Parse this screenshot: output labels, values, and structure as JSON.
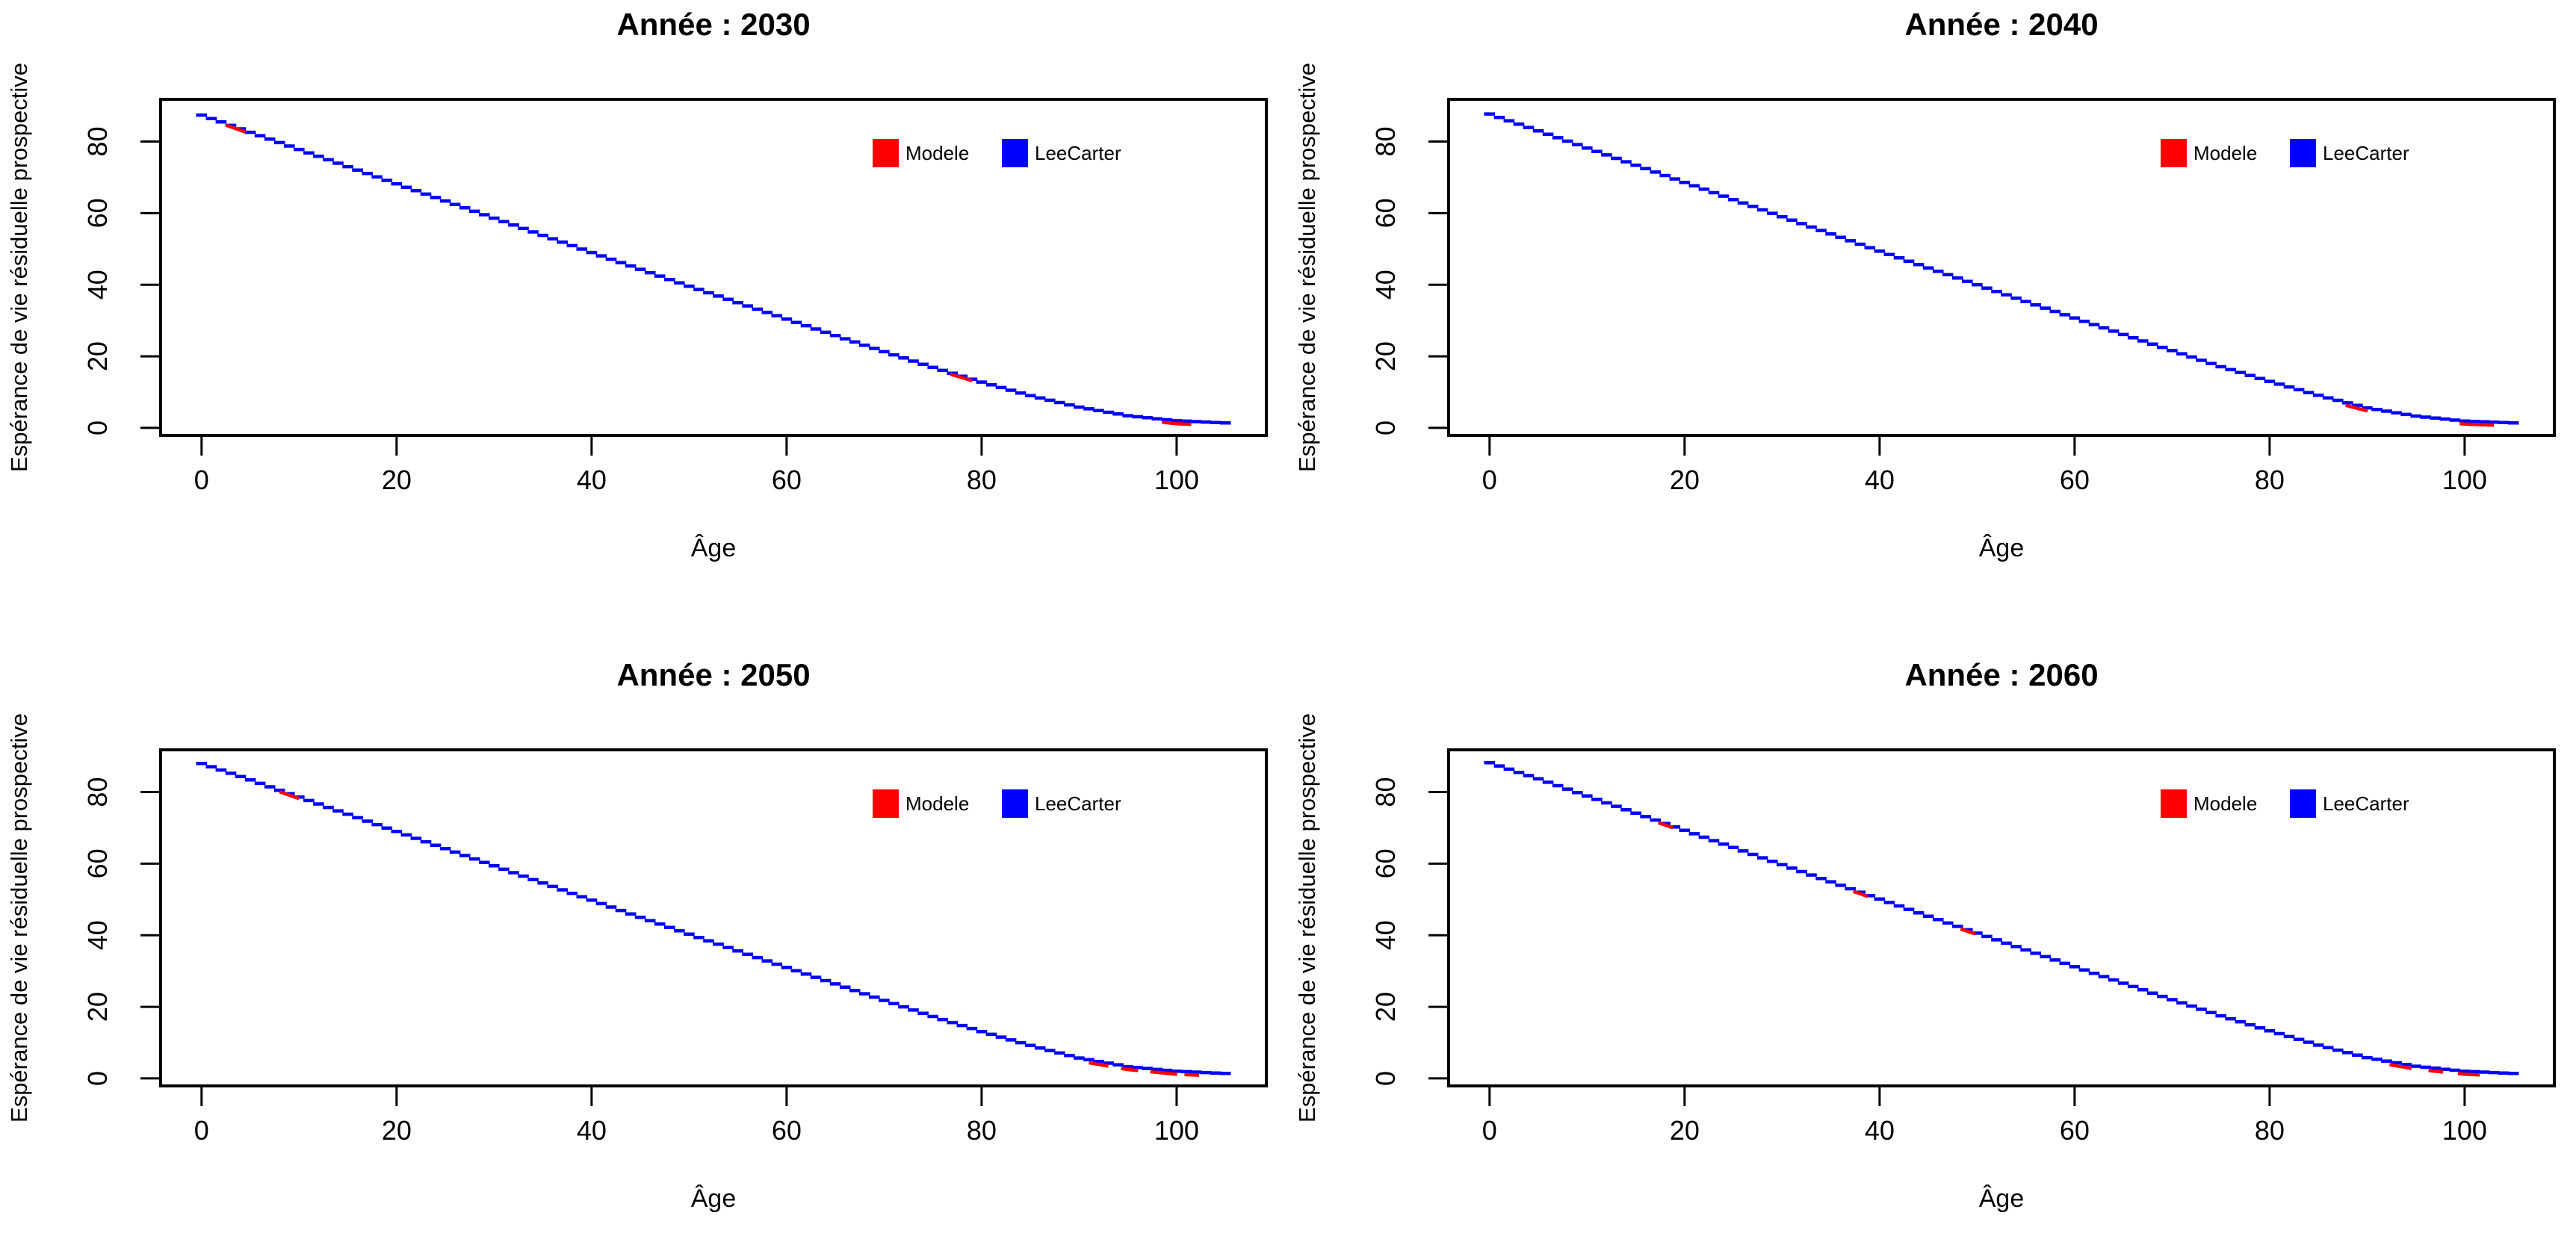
{
  "figure": {
    "background": "#ffffff",
    "rows": 2,
    "cols": 2
  },
  "chart_data": [
    {
      "type": "line",
      "title": "Année : 2030",
      "xlabel": "Âge",
      "ylabel": "Espérance de vie résiduelle prospective",
      "x_ticks": [
        0,
        20,
        40,
        60,
        80,
        100
      ],
      "y_ticks": [
        0,
        20,
        40,
        60,
        80
      ],
      "xlim": [
        -4.2,
        109.2
      ],
      "ylim": [
        -2.1,
        91.8
      ],
      "grid": false,
      "legend": {
        "position": "inside-upper-right",
        "items": [
          {
            "label": "Modele",
            "color": "#ff0000"
          },
          {
            "label": "LeeCarter",
            "color": "#0000ff"
          }
        ]
      },
      "ages": [
        0,
        5,
        10,
        15,
        20,
        25,
        30,
        35,
        40,
        45,
        50,
        55,
        60,
        65,
        70,
        75,
        80,
        85,
        90,
        95,
        100,
        105
      ],
      "series": [
        {
          "name": "Modele",
          "color": "#ff0000",
          "values": [
            87.4,
            82.6,
            77.8,
            73.0,
            68.2,
            63.4,
            58.6,
            53.8,
            49.0,
            44.3,
            39.6,
            35.0,
            30.4,
            25.8,
            21.3,
            16.9,
            12.8,
            9.0,
            5.8,
            3.4,
            2.0,
            1.4
          ]
        },
        {
          "name": "LeeCarter",
          "color": "#0000ff",
          "values": [
            87.4,
            82.6,
            77.8,
            73.0,
            68.2,
            63.4,
            58.6,
            53.8,
            49.0,
            44.3,
            39.6,
            35.0,
            30.4,
            25.8,
            21.3,
            16.9,
            12.8,
            9.0,
            5.8,
            3.4,
            2.0,
            1.4
          ]
        }
      ],
      "modele_visible_age_ranges": [
        [
          2.5,
          4.5
        ],
        [
          76.8,
          79.2
        ],
        [
          98.5,
          101.5
        ]
      ]
    },
    {
      "type": "line",
      "title": "Année : 2040",
      "xlabel": "Âge",
      "ylabel": "Espérance de vie résiduelle prospective",
      "x_ticks": [
        0,
        20,
        40,
        60,
        80,
        100
      ],
      "y_ticks": [
        0,
        20,
        40,
        60,
        80
      ],
      "xlim": [
        -4.2,
        109.2
      ],
      "ylim": [
        -2.1,
        91.8
      ],
      "grid": false,
      "legend": {
        "position": "inside-upper-right",
        "items": [
          {
            "label": "Modele",
            "color": "#ff0000"
          },
          {
            "label": "LeeCarter",
            "color": "#0000ff"
          }
        ]
      },
      "ages": [
        0,
        5,
        10,
        15,
        20,
        25,
        30,
        35,
        40,
        45,
        50,
        55,
        60,
        65,
        70,
        75,
        80,
        85,
        90,
        95,
        100,
        105
      ],
      "series": [
        {
          "name": "Modele",
          "color": "#ff0000",
          "values": [
            87.7,
            83.0,
            78.2,
            73.4,
            68.6,
            63.8,
            59.0,
            54.2,
            49.4,
            44.7,
            40.0,
            35.3,
            30.7,
            26.1,
            21.6,
            17.1,
            13.0,
            9.1,
            5.6,
            3.3,
            1.9,
            1.4
          ]
        },
        {
          "name": "LeeCarter",
          "color": "#0000ff",
          "values": [
            87.7,
            83.0,
            78.2,
            73.4,
            68.6,
            63.8,
            59.0,
            54.2,
            49.4,
            44.7,
            40.0,
            35.3,
            30.7,
            26.1,
            21.6,
            17.1,
            13.0,
            9.1,
            5.6,
            3.3,
            1.9,
            1.4
          ]
        }
      ],
      "modele_visible_age_ranges": [
        [
          87.8,
          90.2
        ],
        [
          99.5,
          103.0
        ]
      ]
    },
    {
      "type": "line",
      "title": "Année : 2050",
      "xlabel": "Âge",
      "ylabel": "Espérance de vie résiduelle prospective",
      "x_ticks": [
        0,
        20,
        40,
        60,
        80,
        100
      ],
      "y_ticks": [
        0,
        20,
        40,
        60,
        80
      ],
      "xlim": [
        -4.2,
        109.2
      ],
      "ylim": [
        -2.1,
        91.8
      ],
      "grid": false,
      "legend": {
        "position": "inside-upper-right",
        "items": [
          {
            "label": "Modele",
            "color": "#ff0000"
          },
          {
            "label": "LeeCarter",
            "color": "#0000ff"
          }
        ]
      },
      "ages": [
        0,
        5,
        10,
        15,
        20,
        25,
        30,
        35,
        40,
        45,
        50,
        55,
        60,
        65,
        70,
        75,
        80,
        85,
        90,
        95,
        100,
        105
      ],
      "series": [
        {
          "name": "Modele",
          "color": "#ff0000",
          "values": [
            88.0,
            83.4,
            78.6,
            73.8,
            69.0,
            64.2,
            59.4,
            54.6,
            49.8,
            45.0,
            40.3,
            35.6,
            31.0,
            26.4,
            21.8,
            17.3,
            13.1,
            9.2,
            5.7,
            3.3,
            2.0,
            1.4
          ]
        },
        {
          "name": "LeeCarter",
          "color": "#0000ff",
          "values": [
            88.0,
            83.4,
            78.6,
            73.8,
            69.0,
            64.2,
            59.4,
            54.6,
            49.8,
            45.0,
            40.3,
            35.6,
            31.0,
            26.4,
            21.8,
            17.3,
            13.1,
            9.2,
            5.7,
            3.3,
            2.0,
            1.4
          ]
        }
      ],
      "modele_visible_age_ranges": [
        [
          8.0,
          10.0
        ],
        [
          91.0,
          93.0
        ],
        [
          94.3,
          96.2
        ],
        [
          97.3,
          100.2
        ],
        [
          100.8,
          102.5
        ]
      ]
    },
    {
      "type": "line",
      "title": "Année : 2060",
      "xlabel": "Âge",
      "ylabel": "Espérance de vie résiduelle prospective",
      "x_ticks": [
        0,
        20,
        40,
        60,
        80,
        100
      ],
      "y_ticks": [
        0,
        20,
        40,
        60,
        80
      ],
      "xlim": [
        -4.2,
        109.2
      ],
      "ylim": [
        -2.1,
        91.8
      ],
      "grid": false,
      "legend": {
        "position": "inside-upper-right",
        "items": [
          {
            "label": "Modele",
            "color": "#ff0000"
          },
          {
            "label": "LeeCarter",
            "color": "#0000ff"
          }
        ]
      },
      "ages": [
        0,
        5,
        10,
        15,
        20,
        25,
        30,
        35,
        40,
        45,
        50,
        55,
        60,
        65,
        70,
        75,
        80,
        85,
        90,
        95,
        100,
        105
      ],
      "series": [
        {
          "name": "Modele",
          "color": "#ff0000",
          "values": [
            88.2,
            83.7,
            78.9,
            74.1,
            69.3,
            64.5,
            59.7,
            54.9,
            50.1,
            45.3,
            40.6,
            35.9,
            31.2,
            26.6,
            22.0,
            17.5,
            13.3,
            9.3,
            5.8,
            3.4,
            2.0,
            1.4
          ]
        },
        {
          "name": "LeeCarter",
          "color": "#0000ff",
          "values": [
            88.2,
            83.7,
            78.9,
            74.1,
            69.3,
            64.5,
            59.7,
            54.9,
            50.1,
            45.3,
            40.6,
            35.9,
            31.2,
            26.6,
            22.0,
            17.5,
            13.3,
            9.3,
            5.8,
            3.4,
            2.0,
            1.4
          ]
        }
      ],
      "modele_visible_age_ranges": [
        [
          17.3,
          19.0
        ],
        [
          37.3,
          39.0
        ],
        [
          48.3,
          50.0
        ],
        [
          92.3,
          94.6
        ],
        [
          96.3,
          98.0
        ],
        [
          99.3,
          101.6
        ]
      ]
    }
  ]
}
